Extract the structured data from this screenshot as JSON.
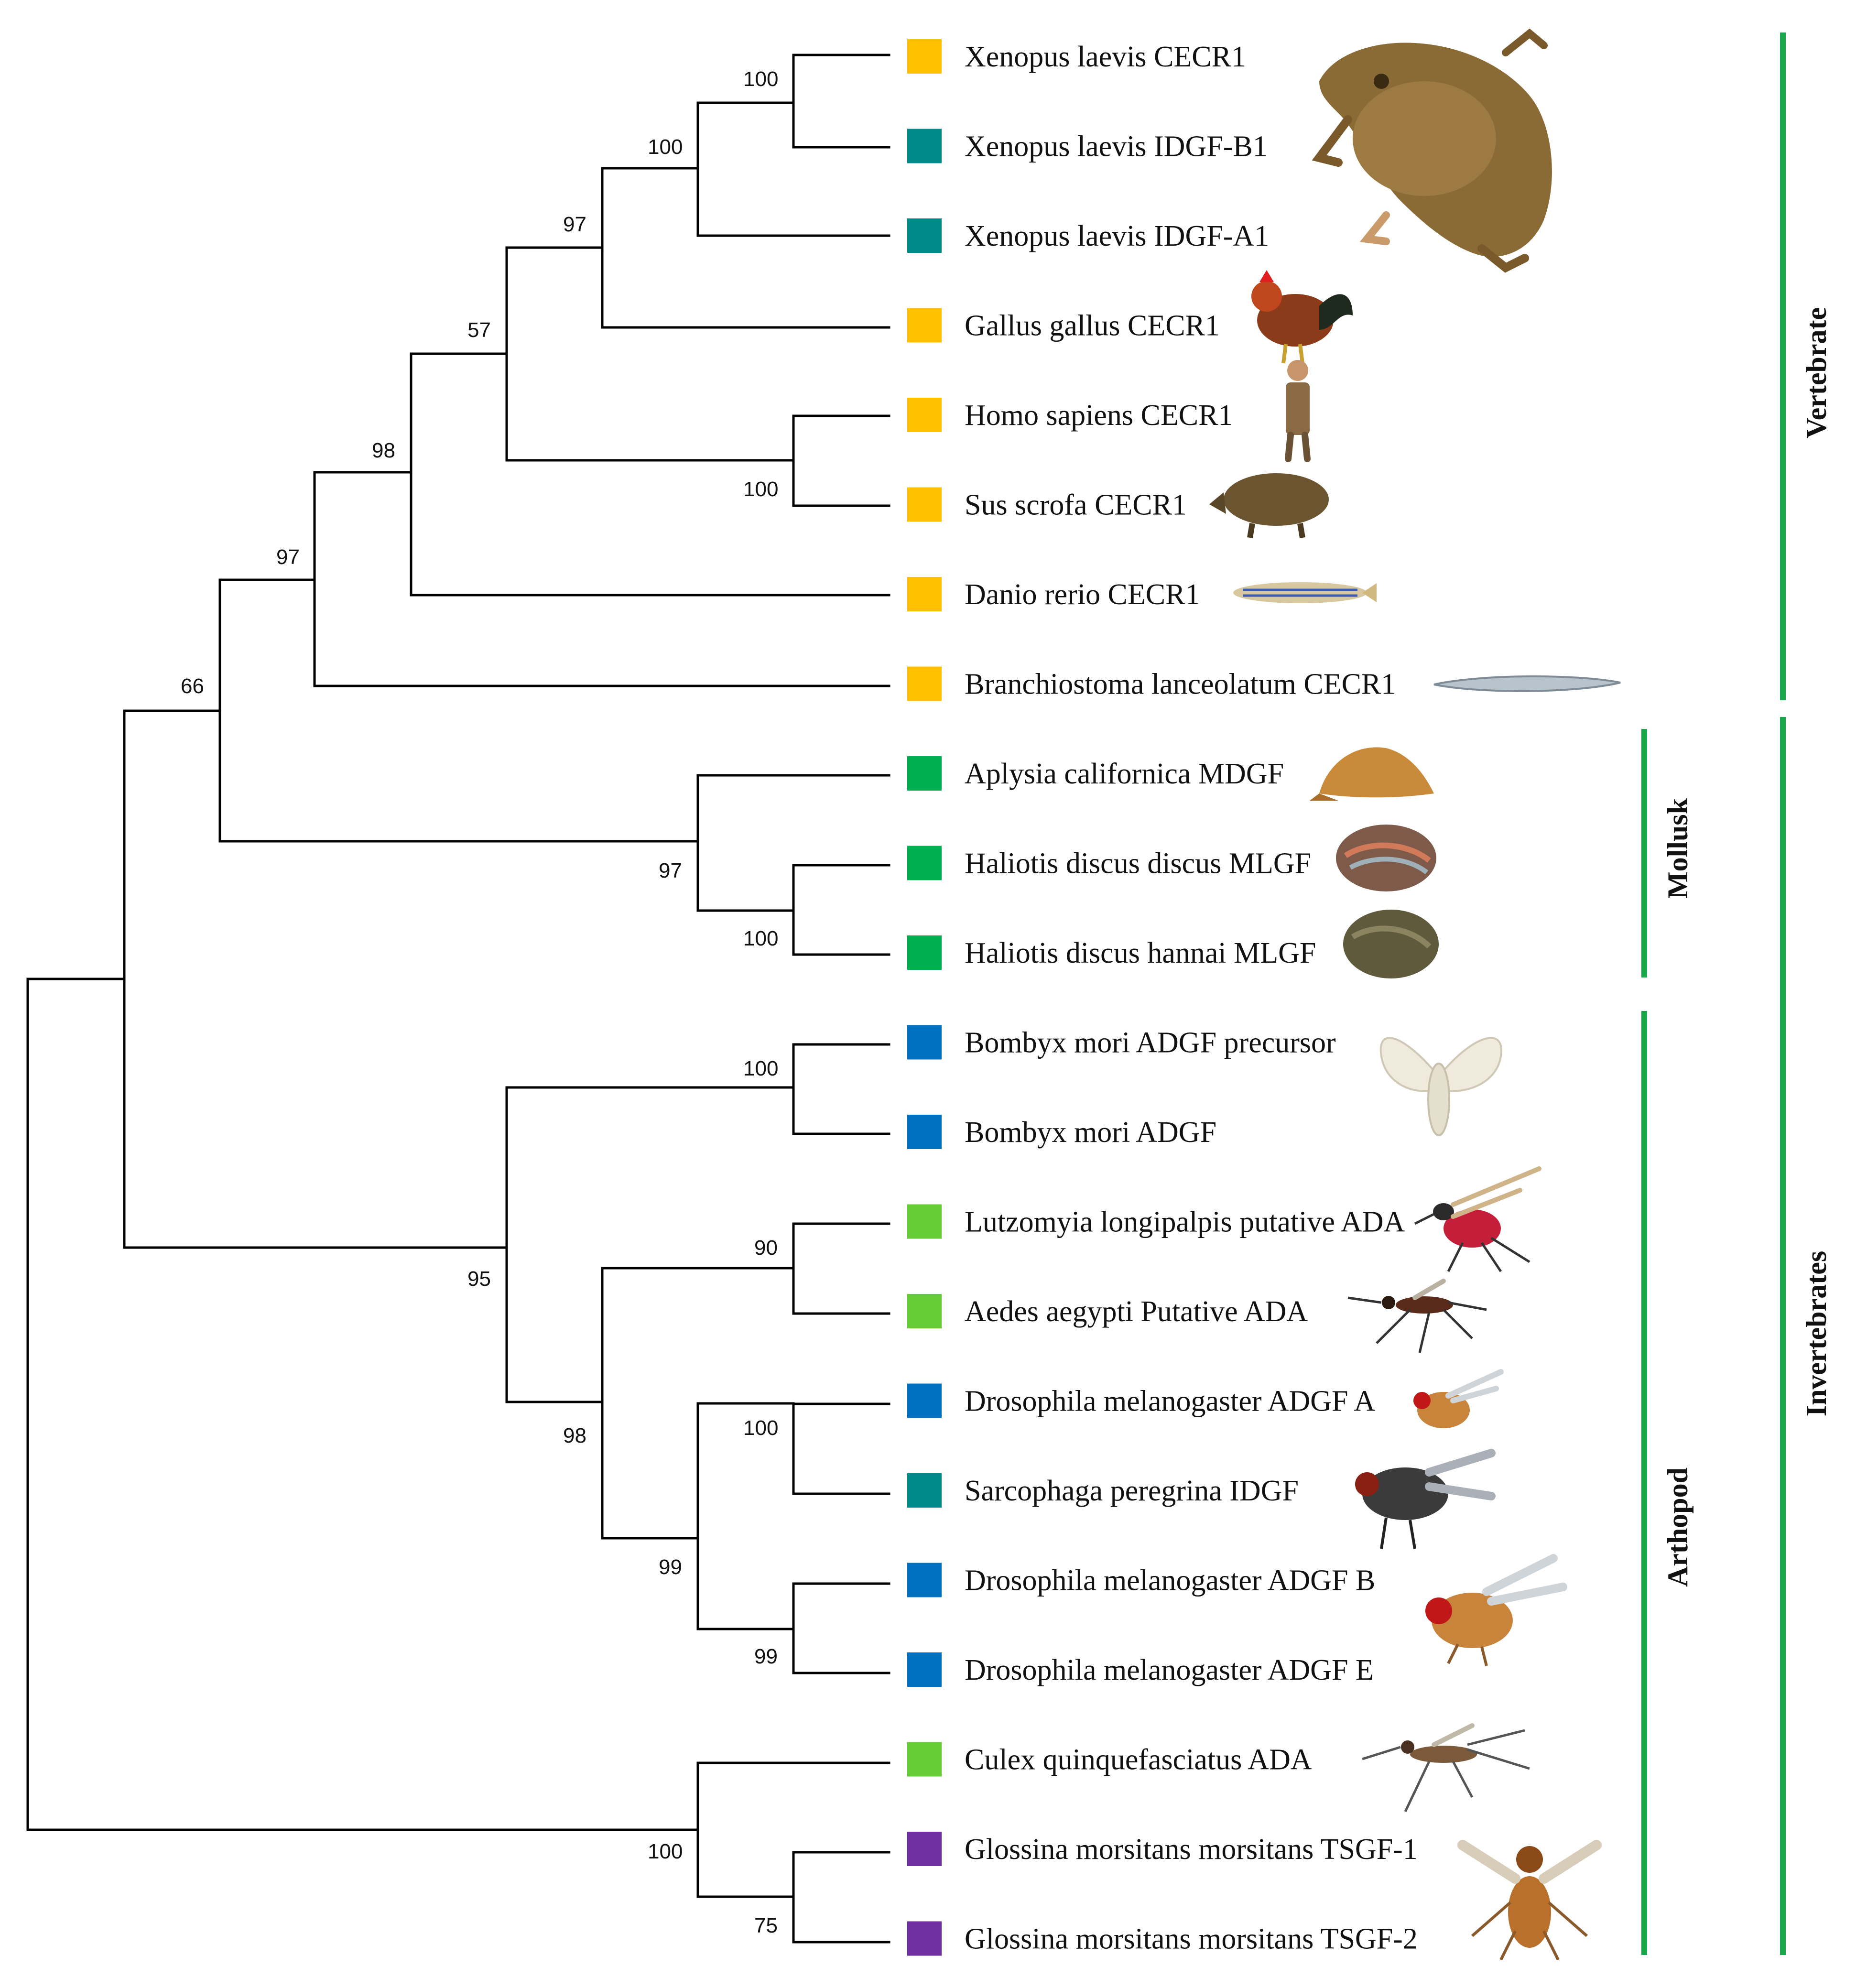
{
  "colors": {
    "cecr1": "#ffc000",
    "idgf": "#008b8b",
    "mollusk_gf": "#00b050",
    "adgf": "#0070c0",
    "ada": "#66cc33",
    "tsgf": "#7030a0",
    "group_bar": "#1aa64a"
  },
  "taxa": [
    {
      "label": "Xenopus laevis CECR1",
      "color": "#ffc000",
      "icon": "frog-icon"
    },
    {
      "label": "Xenopus laevis IDGF-B1",
      "color": "#008b8b",
      "icon": "frog-icon"
    },
    {
      "label": "Xenopus laevis IDGF-A1",
      "color": "#008b8b",
      "icon": "frog-icon"
    },
    {
      "label": "Gallus gallus CECR1",
      "color": "#ffc000",
      "icon": "rooster-icon"
    },
    {
      "label": "Homo sapiens CECR1",
      "color": "#ffc000",
      "icon": "human-icon"
    },
    {
      "label": "Sus scrofa CECR1",
      "color": "#ffc000",
      "icon": "boar-icon"
    },
    {
      "label": "Danio rerio CECR1",
      "color": "#ffc000",
      "icon": "zebrafish-icon"
    },
    {
      "label": "Branchiostoma lanceolatum CECR1",
      "color": "#ffc000",
      "icon": "lancelet-icon"
    },
    {
      "label": "Aplysia californica MDGF",
      "color": "#00b050",
      "icon": "sea-hare-icon"
    },
    {
      "label": "Haliotis discus discus MLGF",
      "color": "#00b050",
      "icon": "abalone-icon"
    },
    {
      "label": "Haliotis discus hannai MLGF",
      "color": "#00b050",
      "icon": "abalone-icon"
    },
    {
      "label": "Bombyx mori ADGF precursor",
      "color": "#0070c0",
      "icon": "moth-icon"
    },
    {
      "label": "Bombyx mori ADGF",
      "color": "#0070c0",
      "icon": "moth-icon"
    },
    {
      "label": "Lutzomyia longipalpis putative ADA",
      "color": "#66cc33",
      "icon": "sandfly-icon"
    },
    {
      "label": "Aedes aegypti Putative ADA",
      "color": "#66cc33",
      "icon": "mosquito-icon"
    },
    {
      "label": "Drosophila melanogaster ADGF A",
      "color": "#0070c0",
      "icon": "fruit-fly-icon"
    },
    {
      "label": "Sarcophaga peregrina IDGF",
      "color": "#008b8b",
      "icon": "flesh-fly-icon"
    },
    {
      "label": "Drosophila melanogaster ADGF B",
      "color": "#0070c0",
      "icon": "fruit-fly-icon"
    },
    {
      "label": "Drosophila melanogaster ADGF E",
      "color": "#0070c0",
      "icon": "fruit-fly-icon"
    },
    {
      "label": "Culex quinquefasciatus ADA",
      "color": "#66cc33",
      "icon": "mosquito-icon"
    },
    {
      "label": "Glossina morsitans morsitans TSGF-1",
      "color": "#7030a0",
      "icon": "tsetse-fly-icon"
    },
    {
      "label": "Glossina morsitans morsitans TSGF-2",
      "color": "#7030a0",
      "icon": "tsetse-fly-icon"
    }
  ],
  "bootstrap": {
    "xen_cecr1_b1": "100",
    "xen_all": "100",
    "xen_gallus": "97",
    "bird_mammal": "57",
    "with_danio": "98",
    "vertebrates": "97",
    "vert_mollusk": "66",
    "homo_sus": "100",
    "haliotis": "100",
    "mollusks": "97",
    "bombyx": "100",
    "lutz_aedes": "90",
    "dros_sarco": "100",
    "dros_be": "99",
    "drosophilids": "99",
    "dipterans": "98",
    "arthropod_core": "95",
    "glossina": "75",
    "culex_glossina": "100"
  },
  "groups": {
    "vertebrate": "Vertebrate",
    "mollusk": "Mollusk",
    "arthropod": "Arthopod",
    "invertebrates": "Invertebrates"
  }
}
